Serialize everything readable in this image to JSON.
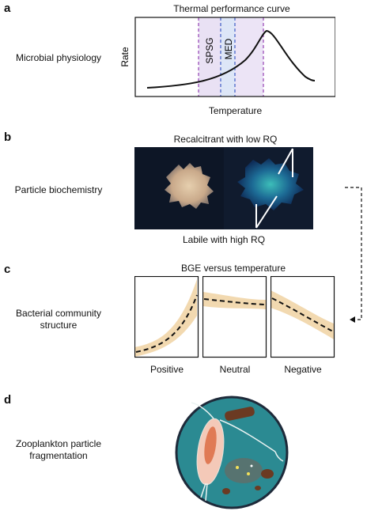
{
  "panels": [
    {
      "letter": "a",
      "row_label": "Microbial physiology"
    },
    {
      "letter": "b",
      "row_label": "Particle biochemistry"
    },
    {
      "letter": "c",
      "row_label_lines": [
        "Bacterial community",
        "structure"
      ]
    },
    {
      "letter": "d",
      "row_label_lines": [
        "Zooplankton particle",
        "fragmentation"
      ]
    }
  ],
  "panel_a": {
    "title": "Thermal performance curve",
    "xlabel": "Temperature",
    "ylabel": "Rate",
    "markers": [
      "SPSG",
      "MED"
    ],
    "colors": {
      "spsg_band": "#e9e1f4",
      "med_band": "#dde6f7",
      "spsg_line": "#9b4fb8",
      "med_line": "#4a67c9"
    }
  },
  "panel_b": {
    "top_caption": "Recalcitrant with low RQ",
    "bottom_caption": "Labile with high RQ"
  },
  "panel_c": {
    "title": "BGE versus temperature",
    "subplots": [
      {
        "label": "Positive",
        "trend": "positive"
      },
      {
        "label": "Neutral",
        "trend": "neutral"
      },
      {
        "label": "Negative",
        "trend": "negative"
      }
    ],
    "colors": {
      "band": "#f2d9b0"
    }
  },
  "panel_d": {
    "colors": {
      "circle": "#2b8a92",
      "outline": "#1e2a3a"
    }
  }
}
